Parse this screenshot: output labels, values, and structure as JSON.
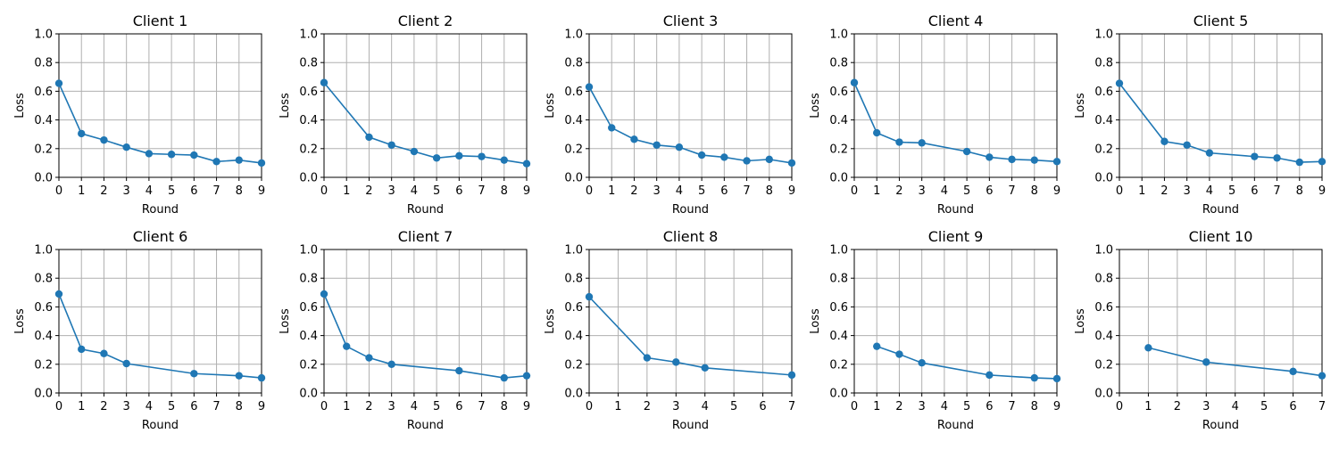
{
  "chart_data": [
    {
      "type": "line",
      "title": "Client 1",
      "xlabel": "Round",
      "ylabel": "Loss",
      "xlim": [
        0,
        9
      ],
      "ylim": [
        0,
        1
      ],
      "xticks": [
        0,
        1,
        2,
        3,
        4,
        5,
        6,
        7,
        8,
        9
      ],
      "yticks": [
        0.0,
        0.2,
        0.4,
        0.6,
        0.8,
        1.0
      ],
      "grid": true,
      "color": "#1f77b4",
      "x": [
        0,
        1,
        2,
        3,
        4,
        5,
        6,
        7,
        8,
        9
      ],
      "y": [
        0.655,
        0.305,
        0.26,
        0.21,
        0.165,
        0.16,
        0.155,
        0.11,
        0.12,
        0.1
      ]
    },
    {
      "type": "line",
      "title": "Client 2",
      "xlabel": "Round",
      "ylabel": "Loss",
      "xlim": [
        0,
        9
      ],
      "ylim": [
        0,
        1
      ],
      "xticks": [
        0,
        1,
        2,
        3,
        4,
        5,
        6,
        7,
        8,
        9
      ],
      "yticks": [
        0.0,
        0.2,
        0.4,
        0.6,
        0.8,
        1.0
      ],
      "grid": true,
      "color": "#1f77b4",
      "x": [
        0,
        2,
        3,
        4,
        5,
        6,
        7,
        8,
        9
      ],
      "y": [
        0.66,
        0.28,
        0.225,
        0.18,
        0.135,
        0.15,
        0.145,
        0.12,
        0.095
      ]
    },
    {
      "type": "line",
      "title": "Client 3",
      "xlabel": "Round",
      "ylabel": "Loss",
      "xlim": [
        0,
        9
      ],
      "ylim": [
        0,
        1
      ],
      "xticks": [
        0,
        1,
        2,
        3,
        4,
        5,
        6,
        7,
        8,
        9
      ],
      "yticks": [
        0.0,
        0.2,
        0.4,
        0.6,
        0.8,
        1.0
      ],
      "grid": true,
      "color": "#1f77b4",
      "x": [
        0,
        1,
        2,
        3,
        4,
        5,
        6,
        7,
        8,
        9
      ],
      "y": [
        0.63,
        0.345,
        0.265,
        0.225,
        0.21,
        0.155,
        0.14,
        0.115,
        0.125,
        0.1
      ]
    },
    {
      "type": "line",
      "title": "Client 4",
      "xlabel": "Round",
      "ylabel": "Loss",
      "xlim": [
        0,
        9
      ],
      "ylim": [
        0,
        1
      ],
      "xticks": [
        0,
        1,
        2,
        3,
        4,
        5,
        6,
        7,
        8,
        9
      ],
      "yticks": [
        0.0,
        0.2,
        0.4,
        0.6,
        0.8,
        1.0
      ],
      "grid": true,
      "color": "#1f77b4",
      "x": [
        0,
        1,
        2,
        3,
        5,
        6,
        7,
        8,
        9
      ],
      "y": [
        0.66,
        0.31,
        0.245,
        0.24,
        0.18,
        0.14,
        0.125,
        0.12,
        0.11
      ]
    },
    {
      "type": "line",
      "title": "Client 5",
      "xlabel": "Round",
      "ylabel": "Loss",
      "xlim": [
        0,
        9
      ],
      "ylim": [
        0,
        1
      ],
      "xticks": [
        0,
        1,
        2,
        3,
        4,
        5,
        6,
        7,
        8,
        9
      ],
      "yticks": [
        0.0,
        0.2,
        0.4,
        0.6,
        0.8,
        1.0
      ],
      "grid": true,
      "color": "#1f77b4",
      "x": [
        0,
        2,
        3,
        4,
        6,
        7,
        8,
        9
      ],
      "y": [
        0.655,
        0.25,
        0.225,
        0.17,
        0.145,
        0.135,
        0.105,
        0.11
      ]
    },
    {
      "type": "line",
      "title": "Client 6",
      "xlabel": "Round",
      "ylabel": "Loss",
      "xlim": [
        0,
        9
      ],
      "ylim": [
        0,
        1
      ],
      "xticks": [
        0,
        1,
        2,
        3,
        4,
        5,
        6,
        7,
        8,
        9
      ],
      "yticks": [
        0.0,
        0.2,
        0.4,
        0.6,
        0.8,
        1.0
      ],
      "grid": true,
      "color": "#1f77b4",
      "x": [
        0,
        1,
        2,
        3,
        6,
        8,
        9
      ],
      "y": [
        0.69,
        0.305,
        0.275,
        0.205,
        0.135,
        0.12,
        0.105
      ]
    },
    {
      "type": "line",
      "title": "Client 7",
      "xlabel": "Round",
      "ylabel": "Loss",
      "xlim": [
        0,
        9
      ],
      "ylim": [
        0,
        1
      ],
      "xticks": [
        0,
        1,
        2,
        3,
        4,
        5,
        6,
        7,
        8,
        9
      ],
      "yticks": [
        0.0,
        0.2,
        0.4,
        0.6,
        0.8,
        1.0
      ],
      "grid": true,
      "color": "#1f77b4",
      "x": [
        0,
        1,
        2,
        3,
        6,
        8,
        9
      ],
      "y": [
        0.69,
        0.325,
        0.245,
        0.2,
        0.155,
        0.105,
        0.12
      ]
    },
    {
      "type": "line",
      "title": "Client 8",
      "xlabel": "Round",
      "ylabel": "Loss",
      "xlim": [
        0,
        7
      ],
      "ylim": [
        0,
        1
      ],
      "xticks": [
        0,
        1,
        2,
        3,
        4,
        5,
        6,
        7
      ],
      "yticks": [
        0.0,
        0.2,
        0.4,
        0.6,
        0.8,
        1.0
      ],
      "grid": true,
      "color": "#1f77b4",
      "x": [
        0,
        2,
        3,
        4,
        7
      ],
      "y": [
        0.67,
        0.245,
        0.215,
        0.175,
        0.125
      ]
    },
    {
      "type": "line",
      "title": "Client 9",
      "xlabel": "Round",
      "ylabel": "Loss",
      "xlim": [
        0,
        9
      ],
      "ylim": [
        0,
        1
      ],
      "xticks": [
        0,
        1,
        2,
        3,
        4,
        5,
        6,
        7,
        8,
        9
      ],
      "yticks": [
        0.0,
        0.2,
        0.4,
        0.6,
        0.8,
        1.0
      ],
      "grid": true,
      "color": "#1f77b4",
      "x": [
        1,
        2,
        3,
        6,
        8,
        9
      ],
      "y": [
        0.325,
        0.27,
        0.21,
        0.125,
        0.105,
        0.1
      ]
    },
    {
      "type": "line",
      "title": "Client 10",
      "xlabel": "Round",
      "ylabel": "Loss",
      "xlim": [
        0,
        7
      ],
      "ylim": [
        0,
        1
      ],
      "xticks": [
        0,
        1,
        2,
        3,
        4,
        5,
        6,
        7
      ],
      "yticks": [
        0.0,
        0.2,
        0.4,
        0.6,
        0.8,
        1.0
      ],
      "grid": true,
      "color": "#1f77b4",
      "x": [
        1,
        3,
        6,
        7
      ],
      "y": [
        0.315,
        0.215,
        0.15,
        0.12
      ]
    }
  ]
}
